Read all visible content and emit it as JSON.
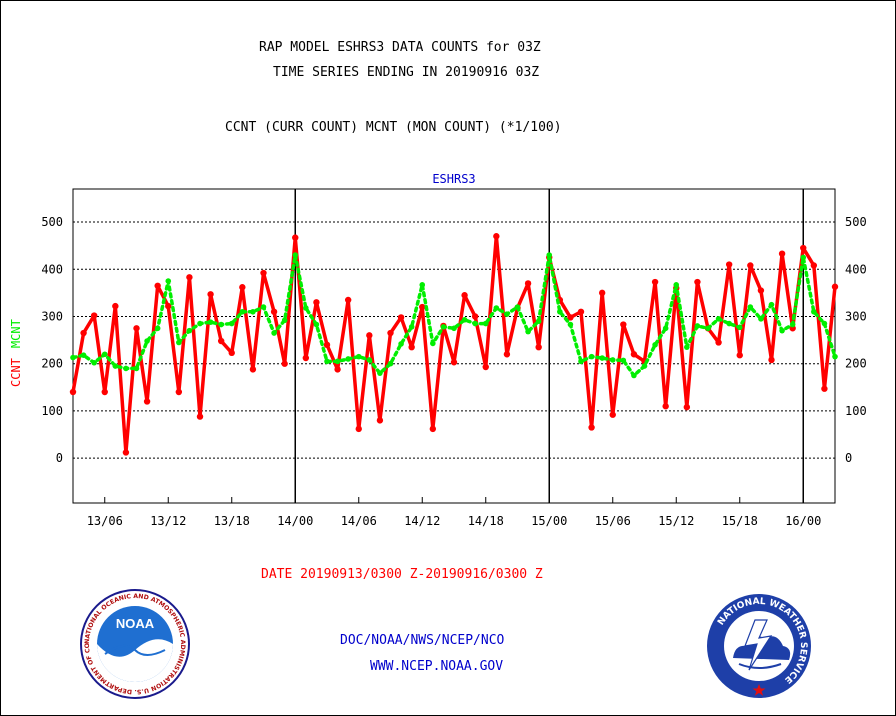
{
  "header": {
    "title_line1": "RAP MODEL ESHRS3 DATA COUNTS for 03Z",
    "title_line2": "TIME SERIES ENDING IN 20190916 03Z",
    "subtitle": "CCNT (CURR COUNT) MCNT (MON COUNT) (*1/100)"
  },
  "colors": {
    "ccnt": "#ff0000",
    "mcnt": "#00ee00",
    "blue": "#0000cc",
    "black": "#000000"
  },
  "chart_data": {
    "type": "line",
    "title": "ESHRS3",
    "ylabel_left_ccnt": "CCNT",
    "ylabel_left_mcnt": "MCNT",
    "xlabel": "DATE 20190913/0300 Z-20190916/0300 Z",
    "ylim": [
      -95,
      570
    ],
    "yticks": [
      0,
      100,
      200,
      300,
      400,
      500
    ],
    "yticks_right": [
      0,
      100,
      200,
      300,
      400,
      500
    ],
    "x_tick_labels": [
      "13/06",
      "13/12",
      "13/18",
      "14/00",
      "14/06",
      "14/12",
      "14/18",
      "15/00",
      "15/06",
      "15/12",
      "15/18",
      "16/00"
    ],
    "x_tick_hours": [
      3,
      9,
      15,
      21,
      27,
      33,
      39,
      45,
      51,
      57,
      63,
      69
    ],
    "day_boundaries_hours": [
      21,
      45,
      69
    ],
    "x_hours_range": [
      0,
      72
    ],
    "grid": true,
    "series": [
      {
        "name": "CCNT",
        "color": "#ff0000",
        "values": [
          140,
          265,
          302,
          140,
          322,
          12,
          275,
          120,
          365,
          322,
          140,
          383,
          88,
          347,
          248,
          223,
          362,
          188,
          392,
          310,
          200,
          467,
          212,
          330,
          240,
          188,
          335,
          62,
          260,
          80,
          265,
          298,
          235,
          320,
          62,
          280,
          203,
          345,
          300,
          193,
          470,
          220,
          318,
          370,
          235,
          425,
          335,
          298,
          310,
          65,
          350,
          92,
          283,
          220,
          205,
          373,
          110,
          360,
          108,
          373,
          275,
          245,
          410,
          218,
          408,
          355,
          208,
          433,
          275,
          445,
          408,
          147,
          363
        ]
      },
      {
        "name": "MCNT",
        "color": "#00ee00",
        "values": [
          213,
          218,
          202,
          220,
          195,
          190,
          190,
          248,
          275,
          375,
          245,
          270,
          285,
          288,
          283,
          285,
          310,
          310,
          320,
          265,
          292,
          430,
          318,
          283,
          205,
          205,
          210,
          215,
          208,
          180,
          200,
          242,
          278,
          367,
          243,
          278,
          275,
          293,
          285,
          285,
          318,
          305,
          320,
          268,
          290,
          430,
          310,
          283,
          205,
          215,
          212,
          208,
          207,
          175,
          195,
          240,
          275,
          367,
          235,
          280,
          275,
          295,
          285,
          277,
          320,
          295,
          325,
          270,
          283,
          425,
          310,
          285,
          215
        ]
      }
    ]
  },
  "footer": {
    "org_line": "DOC/NOAA/NWS/NCEP/NCO",
    "url": "WWW.NCEP.NOAA.GOV",
    "noaa_logo_text": "NOAA",
    "noaa_ring_text": "NATIONAL OCEANIC AND ATMOSPHERIC ADMINISTRATION  U.S. DEPARTMENT OF COMMERCE",
    "nws_ring_text": "NATIONAL WEATHER SERVICE"
  }
}
